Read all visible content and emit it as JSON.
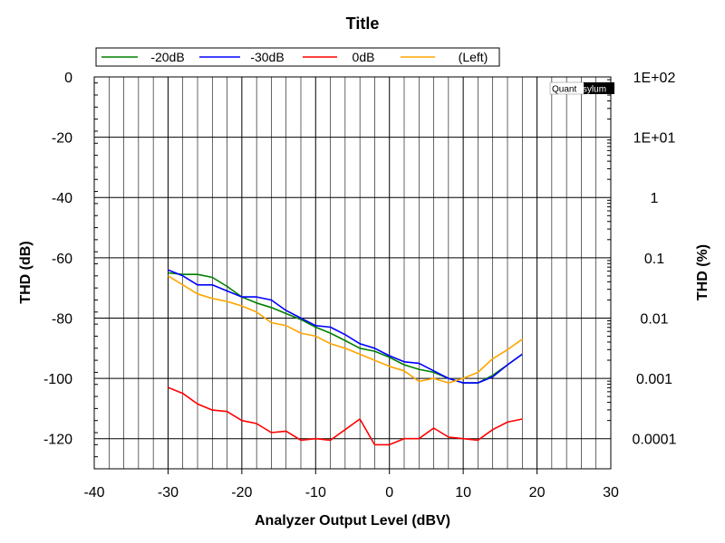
{
  "chart_data": {
    "type": "line",
    "title": "Title",
    "xlabel": "Analyzer Output Level (dBV)",
    "ylabel": "THD (dB)",
    "y2label": "THD (%)",
    "xlim": [
      -40,
      30
    ],
    "ylim": [
      -130,
      0
    ],
    "xticks": [
      "-40",
      "-30",
      "-20",
      "-10",
      "0",
      "10",
      "20",
      "30"
    ],
    "yticks": [
      "0",
      "-20",
      "-40",
      "-60",
      "-80",
      "-100",
      "-120"
    ],
    "y2ticks": [
      "1E+02",
      "1E+01",
      "1",
      "0.1",
      "0.01",
      "0.001",
      "0.0001"
    ],
    "grid": true,
    "legend_position": "top",
    "watermark": "QuantAsylum",
    "series": [
      {
        "name": "-20dB",
        "color": "#008000",
        "x": [
          -30,
          -28,
          -26,
          -24,
          -22,
          -20,
          -18,
          -16,
          -14,
          -12,
          -10,
          -8,
          -6,
          -4,
          -2,
          0,
          2,
          4,
          6,
          8,
          10,
          12,
          14,
          16,
          18
        ],
        "y": [
          -65,
          -65.5,
          -65.5,
          -66.5,
          -69.5,
          -73,
          -75,
          -76.5,
          -78.5,
          -80.5,
          -83,
          -85,
          -87.5,
          -90,
          -91,
          -93,
          -95.5,
          -97,
          -98,
          -100,
          -101.5,
          -101.5,
          -99,
          -95.5,
          -92
        ]
      },
      {
        "name": "-30dB",
        "color": "#0000ff",
        "x": [
          -30,
          -28,
          -26,
          -24,
          -22,
          -20,
          -18,
          -16,
          -14,
          -12,
          -10,
          -8,
          -6,
          -4,
          -2,
          0,
          2,
          4,
          6,
          8,
          10,
          12,
          14,
          16,
          18
        ],
        "y": [
          -64,
          -66,
          -69,
          -69,
          -71,
          -73,
          -73,
          -74,
          -77.5,
          -80,
          -82.5,
          -83,
          -85.5,
          -88.5,
          -90,
          -92.5,
          -94.5,
          -95,
          -97.5,
          -100,
          -101.5,
          -101.5,
          -99.5,
          -95.5,
          -92
        ]
      },
      {
        "name": "0dB",
        "color": "#ff0000",
        "x": [
          -30,
          -28,
          -26,
          -24,
          -22,
          -20,
          -18,
          -16,
          -14,
          -12,
          -10,
          -8,
          -6,
          -4,
          -2,
          0,
          2,
          4,
          6,
          8,
          10,
          12,
          14,
          16,
          18
        ],
        "y": [
          -103,
          -105,
          -108.5,
          -110.5,
          -111,
          -114,
          -115,
          -118,
          -117.5,
          -120.5,
          -120,
          -120.5,
          -117,
          -113.5,
          -122,
          -122,
          -120,
          -120,
          -116.5,
          -119.5,
          -120,
          -120.5,
          -117,
          -114.5,
          -113.5
        ]
      },
      {
        "name": "(Left)",
        "color": "#ffa500",
        "x": [
          -30,
          -28,
          -26,
          -24,
          -22,
          -20,
          -18,
          -16,
          -14,
          -12,
          -10,
          -8,
          -6,
          -4,
          -2,
          0,
          2,
          4,
          6,
          8,
          10,
          12,
          14,
          16,
          18
        ],
        "y": [
          -66,
          -69,
          -72,
          -73.5,
          -74.5,
          -76,
          -78,
          -81.5,
          -82.5,
          -85,
          -86,
          -88.5,
          -90,
          -92,
          -94,
          -96,
          -97.5,
          -101,
          -100,
          -101.5,
          -100,
          -98,
          -93.5,
          -90.5,
          -87
        ]
      }
    ]
  }
}
